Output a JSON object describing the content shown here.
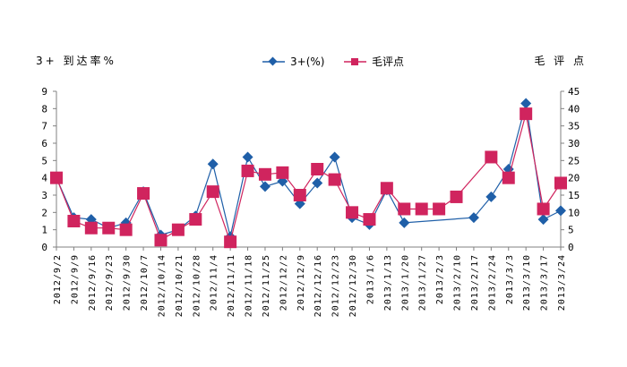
{
  "chart_data": {
    "type": "line",
    "left_axis_title": "3+ 到达率%",
    "right_axis_title": "毛 评 点",
    "categories": [
      "2012/9/2",
      "2012/9/9",
      "2012/9/16",
      "2012/9/23",
      "2012/9/30",
      "2012/10/7",
      "2012/10/14",
      "2012/10/21",
      "2012/10/28",
      "2012/11/4",
      "2012/11/11",
      "2012/11/18",
      "2012/11/25",
      "2012/12/2",
      "2012/12/9",
      "2012/12/16",
      "2012/12/23",
      "2012/12/30",
      "2013/1/6",
      "2013/1/13",
      "2013/1/20",
      "2013/1/27",
      "2013/2/3",
      "2013/2/10",
      "2013/2/17",
      "2013/2/24",
      "2013/3/3",
      "2013/3/10",
      "2013/3/17",
      "2013/3/24"
    ],
    "left_axis": {
      "min": 0,
      "max": 9,
      "ticks": [
        "0",
        "1",
        "2",
        "3",
        "4",
        "5",
        "6",
        "7",
        "8",
        "9"
      ]
    },
    "right_axis": {
      "min": 0,
      "max": 45,
      "ticks": [
        "0",
        "5",
        "10",
        "15",
        "20",
        "25",
        "30",
        "35",
        "40",
        "45"
      ]
    },
    "series": [
      {
        "name": "3+(%)",
        "axis": "left",
        "color": "#1f5fa8",
        "marker": "diamond",
        "values": [
          4.0,
          1.7,
          1.6,
          1.1,
          1.4,
          3.2,
          0.7,
          1.0,
          1.8,
          4.8,
          0.6,
          5.2,
          3.5,
          3.8,
          2.5,
          3.7,
          5.2,
          1.7,
          1.3,
          3.3,
          1.4,
          null,
          null,
          null,
          1.7,
          2.9,
          4.5,
          8.3,
          1.6,
          2.1
        ]
      },
      {
        "name": "毛评点",
        "axis": "right",
        "color": "#d0245e",
        "marker": "square",
        "values": [
          20,
          7.5,
          5.5,
          5.5,
          5,
          15.5,
          2,
          5,
          8,
          16,
          1.5,
          22,
          21,
          21.5,
          15,
          22.5,
          19.5,
          10,
          8,
          17,
          11,
          11,
          11,
          14.5,
          null,
          26,
          20,
          38.5,
          11,
          18.5
        ]
      }
    ],
    "grid": false,
    "legend_position": "top-center"
  }
}
